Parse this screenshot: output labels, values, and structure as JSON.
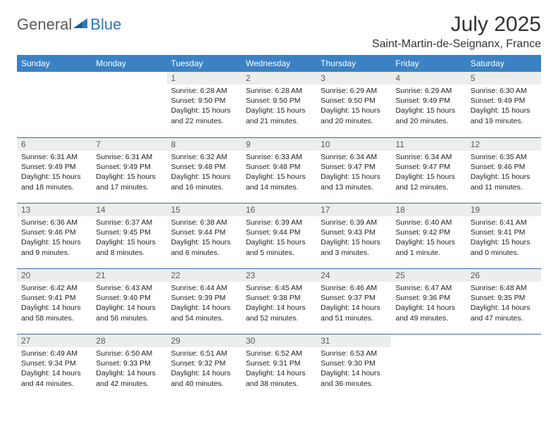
{
  "logo": {
    "general": "General",
    "blue": "Blue"
  },
  "title": "July 2025",
  "location": "Saint-Martin-de-Seignanx, France",
  "colors": {
    "header_bg": "#3b82c4",
    "daynum_bg": "#eceded",
    "row_border": "#3b6b9a",
    "logo_gray": "#5a5a5a",
    "logo_blue": "#2e77b8"
  },
  "weekdays": [
    "Sunday",
    "Monday",
    "Tuesday",
    "Wednesday",
    "Thursday",
    "Friday",
    "Saturday"
  ],
  "weeks": [
    [
      null,
      null,
      {
        "n": "1",
        "sr": "6:28 AM",
        "ss": "9:50 PM",
        "dl": "15 hours and 22 minutes."
      },
      {
        "n": "2",
        "sr": "6:28 AM",
        "ss": "9:50 PM",
        "dl": "15 hours and 21 minutes."
      },
      {
        "n": "3",
        "sr": "6:29 AM",
        "ss": "9:50 PM",
        "dl": "15 hours and 20 minutes."
      },
      {
        "n": "4",
        "sr": "6:29 AM",
        "ss": "9:49 PM",
        "dl": "15 hours and 20 minutes."
      },
      {
        "n": "5",
        "sr": "6:30 AM",
        "ss": "9:49 PM",
        "dl": "15 hours and 19 minutes."
      }
    ],
    [
      {
        "n": "6",
        "sr": "6:31 AM",
        "ss": "9:49 PM",
        "dl": "15 hours and 18 minutes."
      },
      {
        "n": "7",
        "sr": "6:31 AM",
        "ss": "9:49 PM",
        "dl": "15 hours and 17 minutes."
      },
      {
        "n": "8",
        "sr": "6:32 AM",
        "ss": "9:48 PM",
        "dl": "15 hours and 16 minutes."
      },
      {
        "n": "9",
        "sr": "6:33 AM",
        "ss": "9:48 PM",
        "dl": "15 hours and 14 minutes."
      },
      {
        "n": "10",
        "sr": "6:34 AM",
        "ss": "9:47 PM",
        "dl": "15 hours and 13 minutes."
      },
      {
        "n": "11",
        "sr": "6:34 AM",
        "ss": "9:47 PM",
        "dl": "15 hours and 12 minutes."
      },
      {
        "n": "12",
        "sr": "6:35 AM",
        "ss": "9:46 PM",
        "dl": "15 hours and 11 minutes."
      }
    ],
    [
      {
        "n": "13",
        "sr": "6:36 AM",
        "ss": "9:46 PM",
        "dl": "15 hours and 9 minutes."
      },
      {
        "n": "14",
        "sr": "6:37 AM",
        "ss": "9:45 PM",
        "dl": "15 hours and 8 minutes."
      },
      {
        "n": "15",
        "sr": "6:38 AM",
        "ss": "9:44 PM",
        "dl": "15 hours and 6 minutes."
      },
      {
        "n": "16",
        "sr": "6:39 AM",
        "ss": "9:44 PM",
        "dl": "15 hours and 5 minutes."
      },
      {
        "n": "17",
        "sr": "6:39 AM",
        "ss": "9:43 PM",
        "dl": "15 hours and 3 minutes."
      },
      {
        "n": "18",
        "sr": "6:40 AM",
        "ss": "9:42 PM",
        "dl": "15 hours and 1 minute."
      },
      {
        "n": "19",
        "sr": "6:41 AM",
        "ss": "9:41 PM",
        "dl": "15 hours and 0 minutes."
      }
    ],
    [
      {
        "n": "20",
        "sr": "6:42 AM",
        "ss": "9:41 PM",
        "dl": "14 hours and 58 minutes."
      },
      {
        "n": "21",
        "sr": "6:43 AM",
        "ss": "9:40 PM",
        "dl": "14 hours and 56 minutes."
      },
      {
        "n": "22",
        "sr": "6:44 AM",
        "ss": "9:39 PM",
        "dl": "14 hours and 54 minutes."
      },
      {
        "n": "23",
        "sr": "6:45 AM",
        "ss": "9:38 PM",
        "dl": "14 hours and 52 minutes."
      },
      {
        "n": "24",
        "sr": "6:46 AM",
        "ss": "9:37 PM",
        "dl": "14 hours and 51 minutes."
      },
      {
        "n": "25",
        "sr": "6:47 AM",
        "ss": "9:36 PM",
        "dl": "14 hours and 49 minutes."
      },
      {
        "n": "26",
        "sr": "6:48 AM",
        "ss": "9:35 PM",
        "dl": "14 hours and 47 minutes."
      }
    ],
    [
      {
        "n": "27",
        "sr": "6:49 AM",
        "ss": "9:34 PM",
        "dl": "14 hours and 44 minutes."
      },
      {
        "n": "28",
        "sr": "6:50 AM",
        "ss": "9:33 PM",
        "dl": "14 hours and 42 minutes."
      },
      {
        "n": "29",
        "sr": "6:51 AM",
        "ss": "9:32 PM",
        "dl": "14 hours and 40 minutes."
      },
      {
        "n": "30",
        "sr": "6:52 AM",
        "ss": "9:31 PM",
        "dl": "14 hours and 38 minutes."
      },
      {
        "n": "31",
        "sr": "6:53 AM",
        "ss": "9:30 PM",
        "dl": "14 hours and 36 minutes."
      },
      null,
      null
    ]
  ],
  "labels": {
    "sunrise": "Sunrise: ",
    "sunset": "Sunset: ",
    "daylight": "Daylight: "
  }
}
